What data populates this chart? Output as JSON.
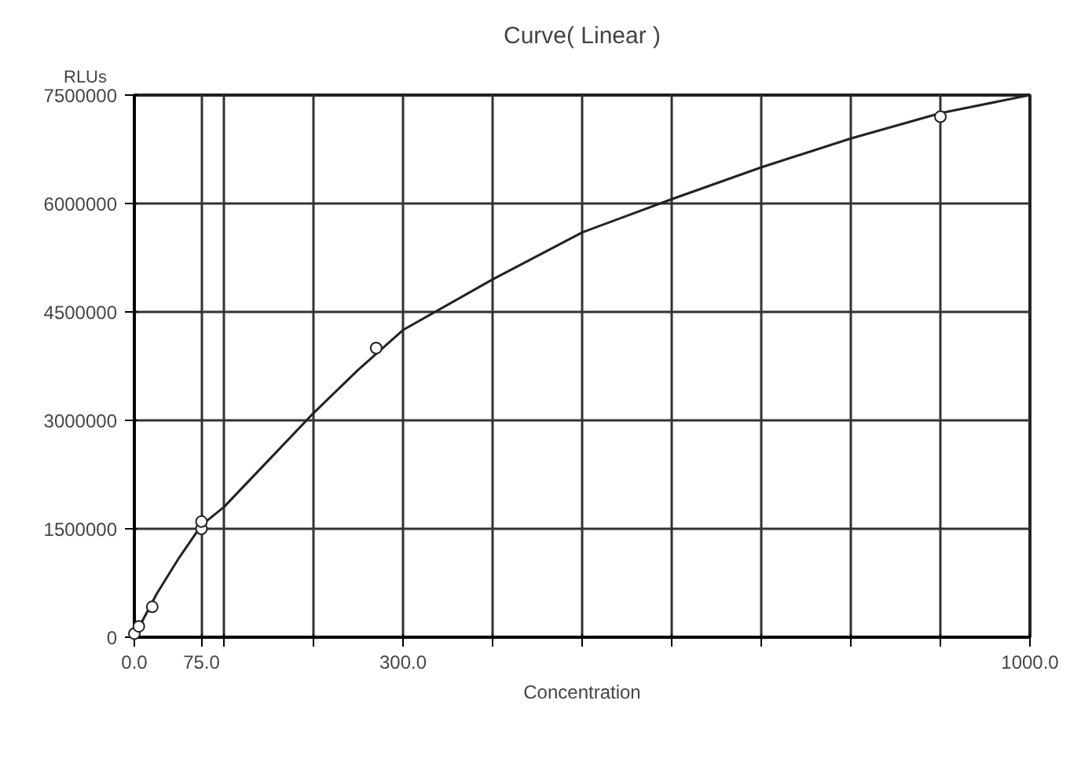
{
  "chart_data": {
    "type": "scatter",
    "title": "Curve( Linear )",
    "xlabel": "Concentration",
    "ylabel": "RLUs",
    "xlim": [
      0,
      1000
    ],
    "ylim": [
      0,
      7500000
    ],
    "xticks": [
      {
        "value": 0,
        "label": "0.0"
      },
      {
        "value": 75,
        "label": "75.0"
      },
      {
        "value": 100,
        "label": null
      },
      {
        "value": 200,
        "label": null
      },
      {
        "value": 300,
        "label": "300.0"
      },
      {
        "value": 400,
        "label": null
      },
      {
        "value": 500,
        "label": null
      },
      {
        "value": 600,
        "label": null
      },
      {
        "value": 700,
        "label": null
      },
      {
        "value": 800,
        "label": null
      },
      {
        "value": 900,
        "label": null
      },
      {
        "value": 1000,
        "label": "1000.0"
      }
    ],
    "yticks": [
      0,
      1500000,
      3000000,
      4500000,
      6000000,
      7500000
    ],
    "grid": true,
    "series": [
      {
        "marker": "circle",
        "color": "#222222",
        "x": [
          0,
          5,
          20,
          75,
          75,
          270,
          900
        ],
        "values": [
          50000,
          150000,
          420000,
          1500000,
          1600000,
          4000000,
          7200000
        ]
      },
      {
        "type": "line",
        "line_style": "solid",
        "color": "#222222",
        "x": [
          0,
          10,
          25,
          50,
          75,
          100,
          150,
          200,
          250,
          300,
          400,
          500,
          600,
          700,
          800,
          900,
          1000
        ],
        "values": [
          0,
          250000,
          600000,
          1100000,
          1550000,
          1800000,
          2450000,
          3100000,
          3700000,
          4250000,
          4950000,
          5600000,
          6060000,
          6500000,
          6900000,
          7250000,
          7500000
        ]
      }
    ]
  }
}
